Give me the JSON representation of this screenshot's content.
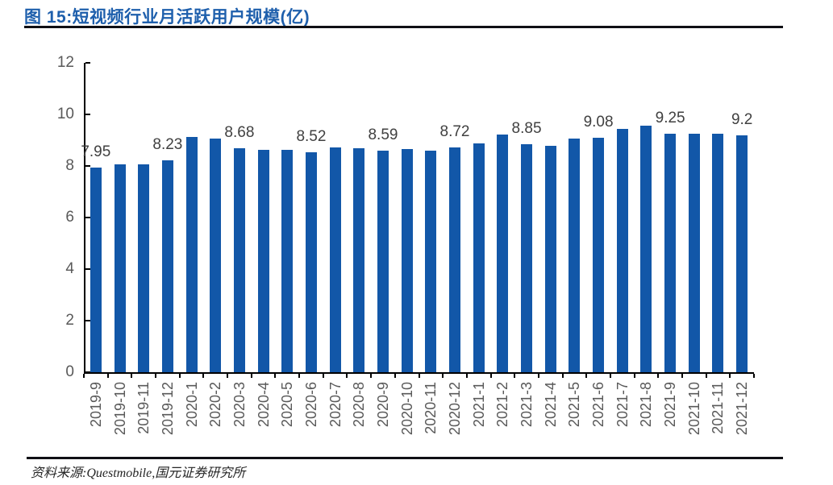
{
  "header": {
    "title": "图 15:短视频行业月活跃用户规模(亿)"
  },
  "footer": {
    "source": "资料来源:Questmobile,国元证券研究所"
  },
  "colors": {
    "bar": "#1257A8",
    "title": "#1E5FAC",
    "axislabel": "#595959",
    "datalabel": "#404040",
    "axis": "#000000",
    "rule": "#0F0F14",
    "footertext": "#262626"
  },
  "chart_data": {
    "type": "bar",
    "title": "短视频行业月活跃用户规模(亿)",
    "xlabel": "",
    "ylabel": "",
    "ylim": [
      0,
      12
    ],
    "yticks": [
      0,
      2,
      4,
      6,
      8,
      10,
      12
    ],
    "grid": false,
    "legend": false,
    "categories": [
      "2019-9",
      "2019-10",
      "2019-11",
      "2019-12",
      "2020-1",
      "2020-2",
      "2020-3",
      "2020-4",
      "2020-5",
      "2020-6",
      "2020-7",
      "2020-8",
      "2020-9",
      "2020-10",
      "2020-11",
      "2020-12",
      "2021-1",
      "2021-2",
      "2021-3",
      "2021-4",
      "2021-5",
      "2021-6",
      "2021-7",
      "2021-8",
      "2021-9",
      "2021-10",
      "2021-11",
      "2021-12"
    ],
    "values": [
      7.95,
      8.05,
      8.07,
      8.23,
      9.12,
      9.05,
      8.68,
      8.62,
      8.63,
      8.52,
      8.71,
      8.7,
      8.59,
      8.66,
      8.6,
      8.72,
      8.87,
      9.22,
      8.85,
      8.79,
      9.05,
      9.08,
      9.45,
      9.55,
      9.25,
      9.26,
      9.26,
      9.2
    ],
    "data_labels": [
      "7.95",
      null,
      null,
      "8.23",
      null,
      null,
      "8.68",
      null,
      null,
      "8.52",
      null,
      null,
      "8.59",
      null,
      null,
      "8.72",
      null,
      null,
      "8.85",
      null,
      null,
      "9.08",
      null,
      null,
      "9.25",
      null,
      null,
      "9.2"
    ]
  }
}
